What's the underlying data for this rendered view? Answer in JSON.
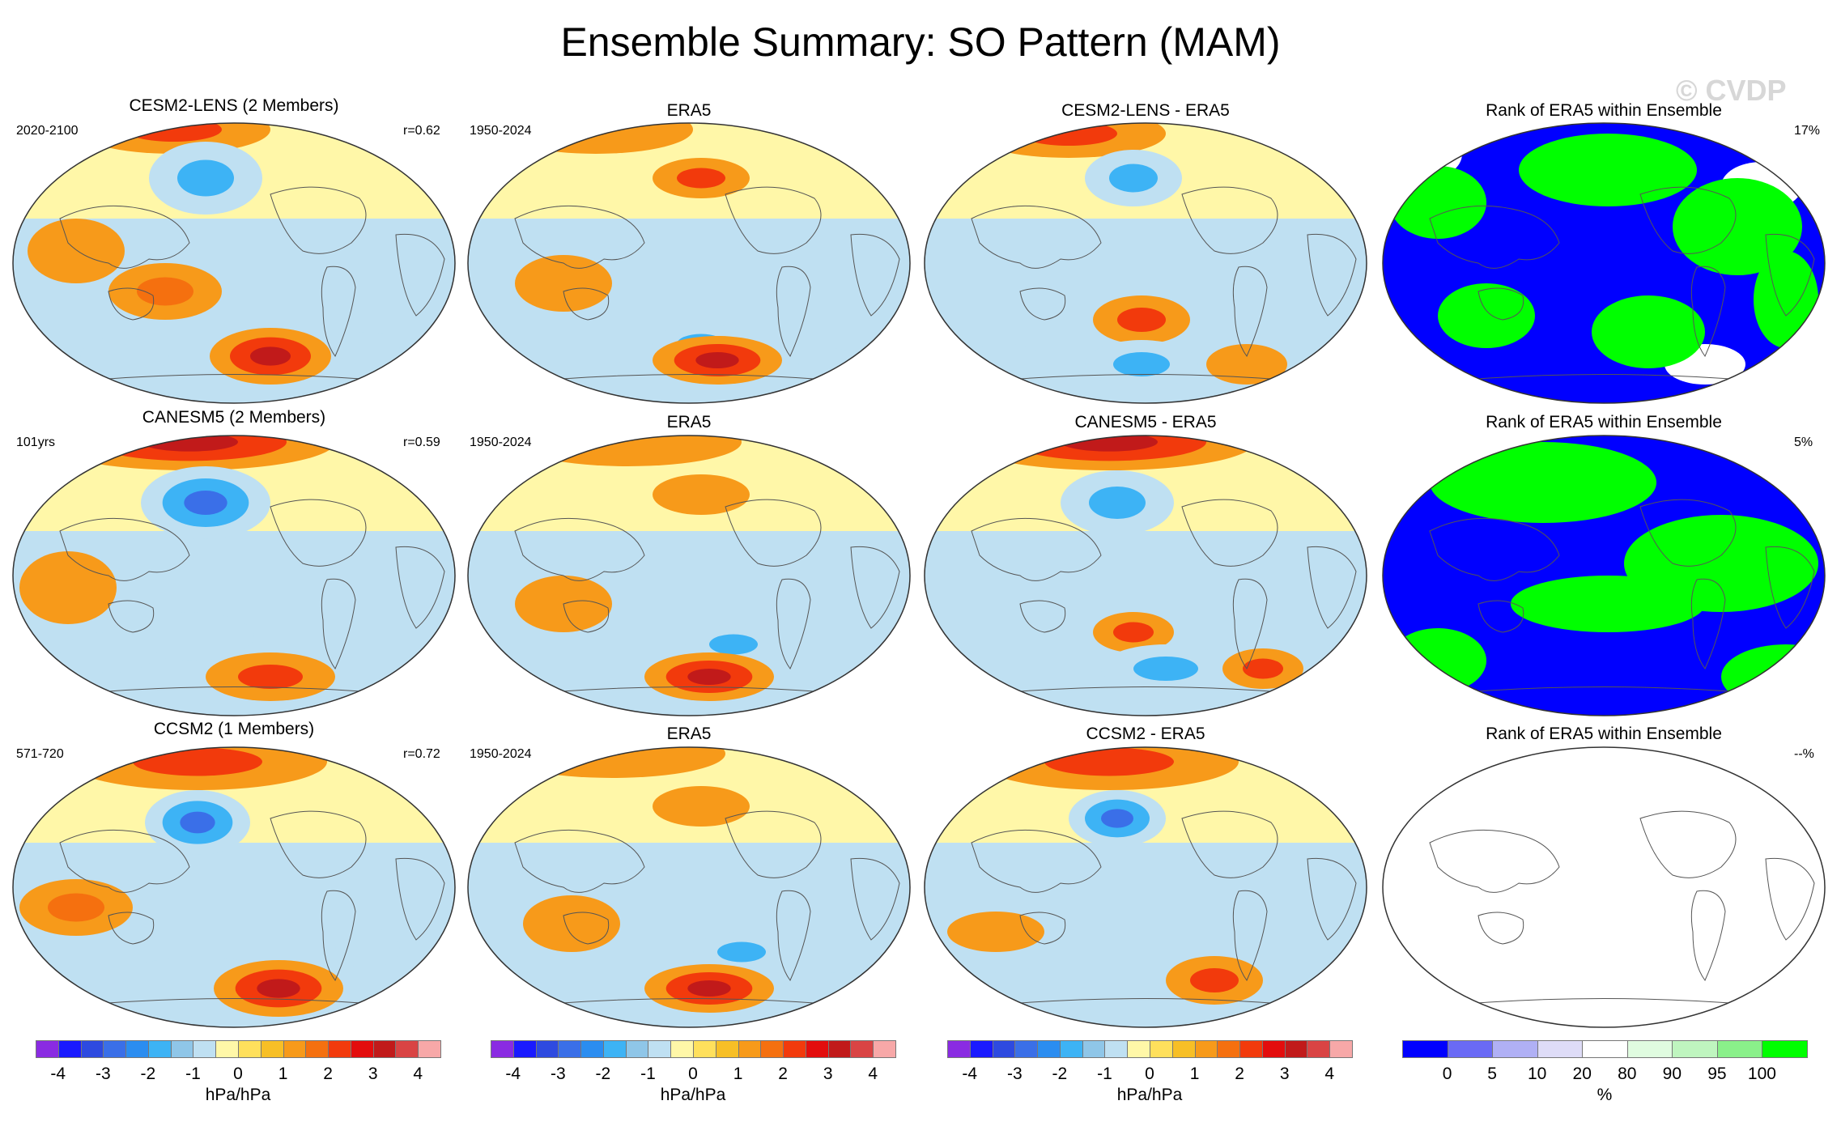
{
  "title": "Ensemble Summary: SO Pattern (MAM)",
  "watermark": "© CVDP",
  "chart_data": {
    "type": "heatmap",
    "title": "Ensemble Summary: SO Pattern (MAM)",
    "rows": [
      {
        "model": "CESM2-LENS (2 Members)",
        "model_period": "2020-2100",
        "pattern_correlation": "r=0.62",
        "obs_title": "ERA5",
        "obs_period": "1950-2024",
        "diff_title": "CESM2-LENS - ERA5",
        "rank_title": "Rank of ERA5 within Ensemble",
        "rank_percent": "17%"
      },
      {
        "model": "CANESM5 (2 Members)",
        "model_period": "101yrs",
        "pattern_correlation": "r=0.59",
        "obs_title": "ERA5",
        "obs_period": "1950-2024",
        "diff_title": "CANESM5 - ERA5",
        "rank_title": "Rank of ERA5 within Ensemble",
        "rank_percent": "5%"
      },
      {
        "model": "CCSM2 (1 Members)",
        "model_period": "571-720",
        "pattern_correlation": "r=0.72",
        "obs_title": "ERA5",
        "obs_period": "1950-2024",
        "diff_title": "CCSM2 - ERA5",
        "rank_title": "Rank of ERA5 within Ensemble",
        "rank_percent": "--%"
      }
    ],
    "regression_colorbar": {
      "units": "hPa/hPa",
      "ticks": [
        "-4",
        "-3",
        "-2",
        "-1",
        "0",
        "1",
        "2",
        "3",
        "4"
      ],
      "colors": [
        "#8a2be2",
        "#1a1aff",
        "#2e4ae0",
        "#3a6fe8",
        "#2b8df0",
        "#3db3f5",
        "#8fc6e8",
        "#bfe0f2",
        "#fff7a8",
        "#ffe05c",
        "#f7bf26",
        "#f79a1a",
        "#f5700f",
        "#f23a0c",
        "#e30d0d",
        "#c11a1a",
        "#d94444",
        "#f7a8a8"
      ]
    },
    "rank_colorbar": {
      "units": "%",
      "ticks": [
        "0",
        "5",
        "10",
        "20",
        "80",
        "90",
        "95",
        "100"
      ],
      "colors": [
        "#0000ff",
        "#6a6af5",
        "#b0b0f5",
        "#dedcf7",
        "#ffffff",
        "#e0fce0",
        "#bff5bf",
        "#8af08a",
        "#00ff00"
      ]
    }
  }
}
